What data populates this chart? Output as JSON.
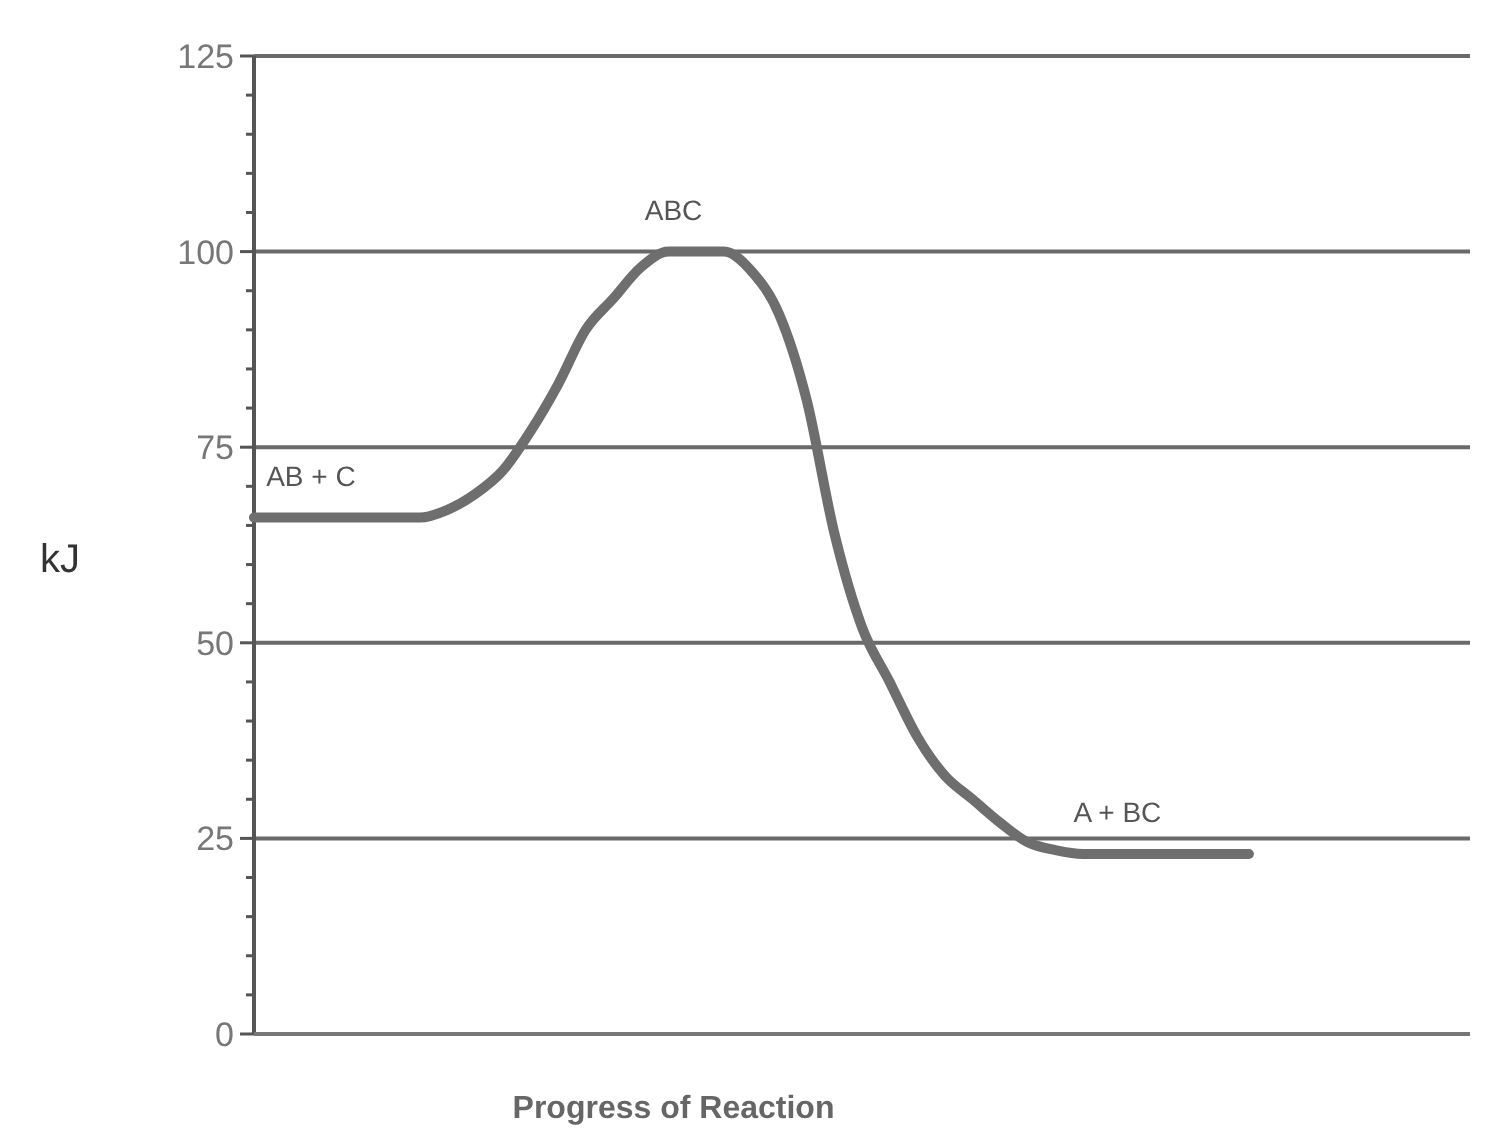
{
  "chart_data": {
    "type": "line",
    "xlabel": "Progress of Reaction",
    "ylabel": "kJ",
    "categories": [
      null,
      null,
      null,
      null,
      null,
      null,
      null,
      null,
      null,
      null,
      null,
      null,
      null,
      null,
      null,
      null,
      null,
      null,
      null,
      null,
      null,
      null,
      null,
      null,
      null,
      null,
      null,
      null,
      null,
      null,
      null,
      null,
      null,
      null,
      null,
      null,
      null,
      null,
      null,
      null,
      null,
      null,
      null,
      null,
      null
    ],
    "series": [
      {
        "color": "#6e6e6e",
        "values": [
          66,
          66,
          66,
          66,
          66,
          66,
          66,
          67,
          69,
          72,
          77,
          83,
          90,
          94,
          98,
          100,
          100,
          100,
          97.5,
          92,
          81,
          64,
          52,
          45,
          38,
          33,
          30,
          27,
          24.5,
          23.5,
          23,
          23,
          23,
          23,
          23,
          23,
          23,
          null,
          null,
          null,
          null,
          null,
          null,
          null,
          null
        ]
      }
    ],
    "annotations": [
      {
        "text": "AB + C",
        "y": 66
      },
      {
        "text": "ABC",
        "y": 100
      },
      {
        "text": "A + BC",
        "y": 23
      }
    ],
    "ylim": [
      0,
      125
    ],
    "yticks": [
      0,
      {
        "value": 5,
        "label": null
      },
      {
        "value": 10,
        "label": null
      },
      {
        "value": 15,
        "label": null
      },
      {
        "value": 20,
        "label": null
      },
      25,
      {
        "value": 30,
        "label": null
      },
      {
        "value": 35,
        "label": null
      },
      {
        "value": 40,
        "label": null
      },
      {
        "value": 45,
        "label": null
      },
      50,
      {
        "value": 55,
        "label": null
      },
      {
        "value": 60,
        "label": null
      },
      {
        "value": 65,
        "label": null
      },
      {
        "value": 70,
        "label": null
      },
      75,
      {
        "value": 80,
        "label": null
      },
      {
        "value": 85,
        "label": null
      },
      {
        "value": 90,
        "label": null
      },
      {
        "value": 95,
        "label": null
      },
      100,
      {
        "value": 105,
        "label": null
      },
      {
        "value": 110,
        "label": null
      },
      {
        "value": 115,
        "label": null
      },
      {
        "value": 120,
        "label": null
      },
      125
    ],
    "grid": "y",
    "tick_labels": "y",
    "line_style": "solid",
    "marker": "none"
  }
}
